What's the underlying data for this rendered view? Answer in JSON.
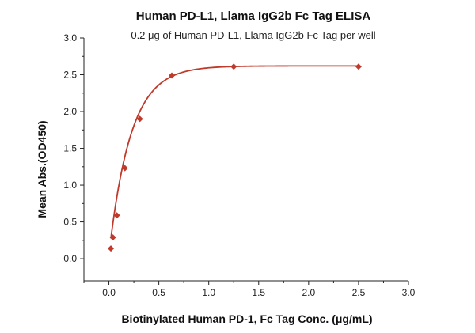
{
  "chart_data": {
    "type": "scatter",
    "title": "Human PD-L1, Llama IgG2b Fc Tag ELISA",
    "subtitle": "0.2 μg of Human PD-L1, Llama IgG2b Fc Tag per well",
    "xlabel": "Biotinylated Human PD-1, Fc Tag Conc. (μg/mL)",
    "ylabel": "Mean Abs.(OD450)",
    "xlim": [
      -0.25,
      3.0
    ],
    "ylim": [
      -0.3,
      3.0
    ],
    "x_ticks": [
      "0.0",
      "0.5",
      "1.0",
      "1.5",
      "2.0",
      "2.5",
      "3.0"
    ],
    "y_ticks": [
      "0.0",
      "0.5",
      "1.0",
      "1.5",
      "2.0",
      "2.5",
      "3.0"
    ],
    "grid": false,
    "marker": "diamond",
    "color": "#c0392b",
    "points": [
      {
        "x": 0.02,
        "y": 0.14
      },
      {
        "x": 0.04,
        "y": 0.29
      },
      {
        "x": 0.08,
        "y": 0.59
      },
      {
        "x": 0.16,
        "y": 1.23
      },
      {
        "x": 0.31,
        "y": 1.9
      },
      {
        "x": 0.63,
        "y": 2.49
      },
      {
        "x": 1.25,
        "y": 2.61
      },
      {
        "x": 2.5,
        "y": 2.61
      }
    ],
    "fit": {
      "model": "exponential-saturation",
      "ymax": 2.62,
      "rate": 4.6,
      "y0": 0.05
    }
  }
}
